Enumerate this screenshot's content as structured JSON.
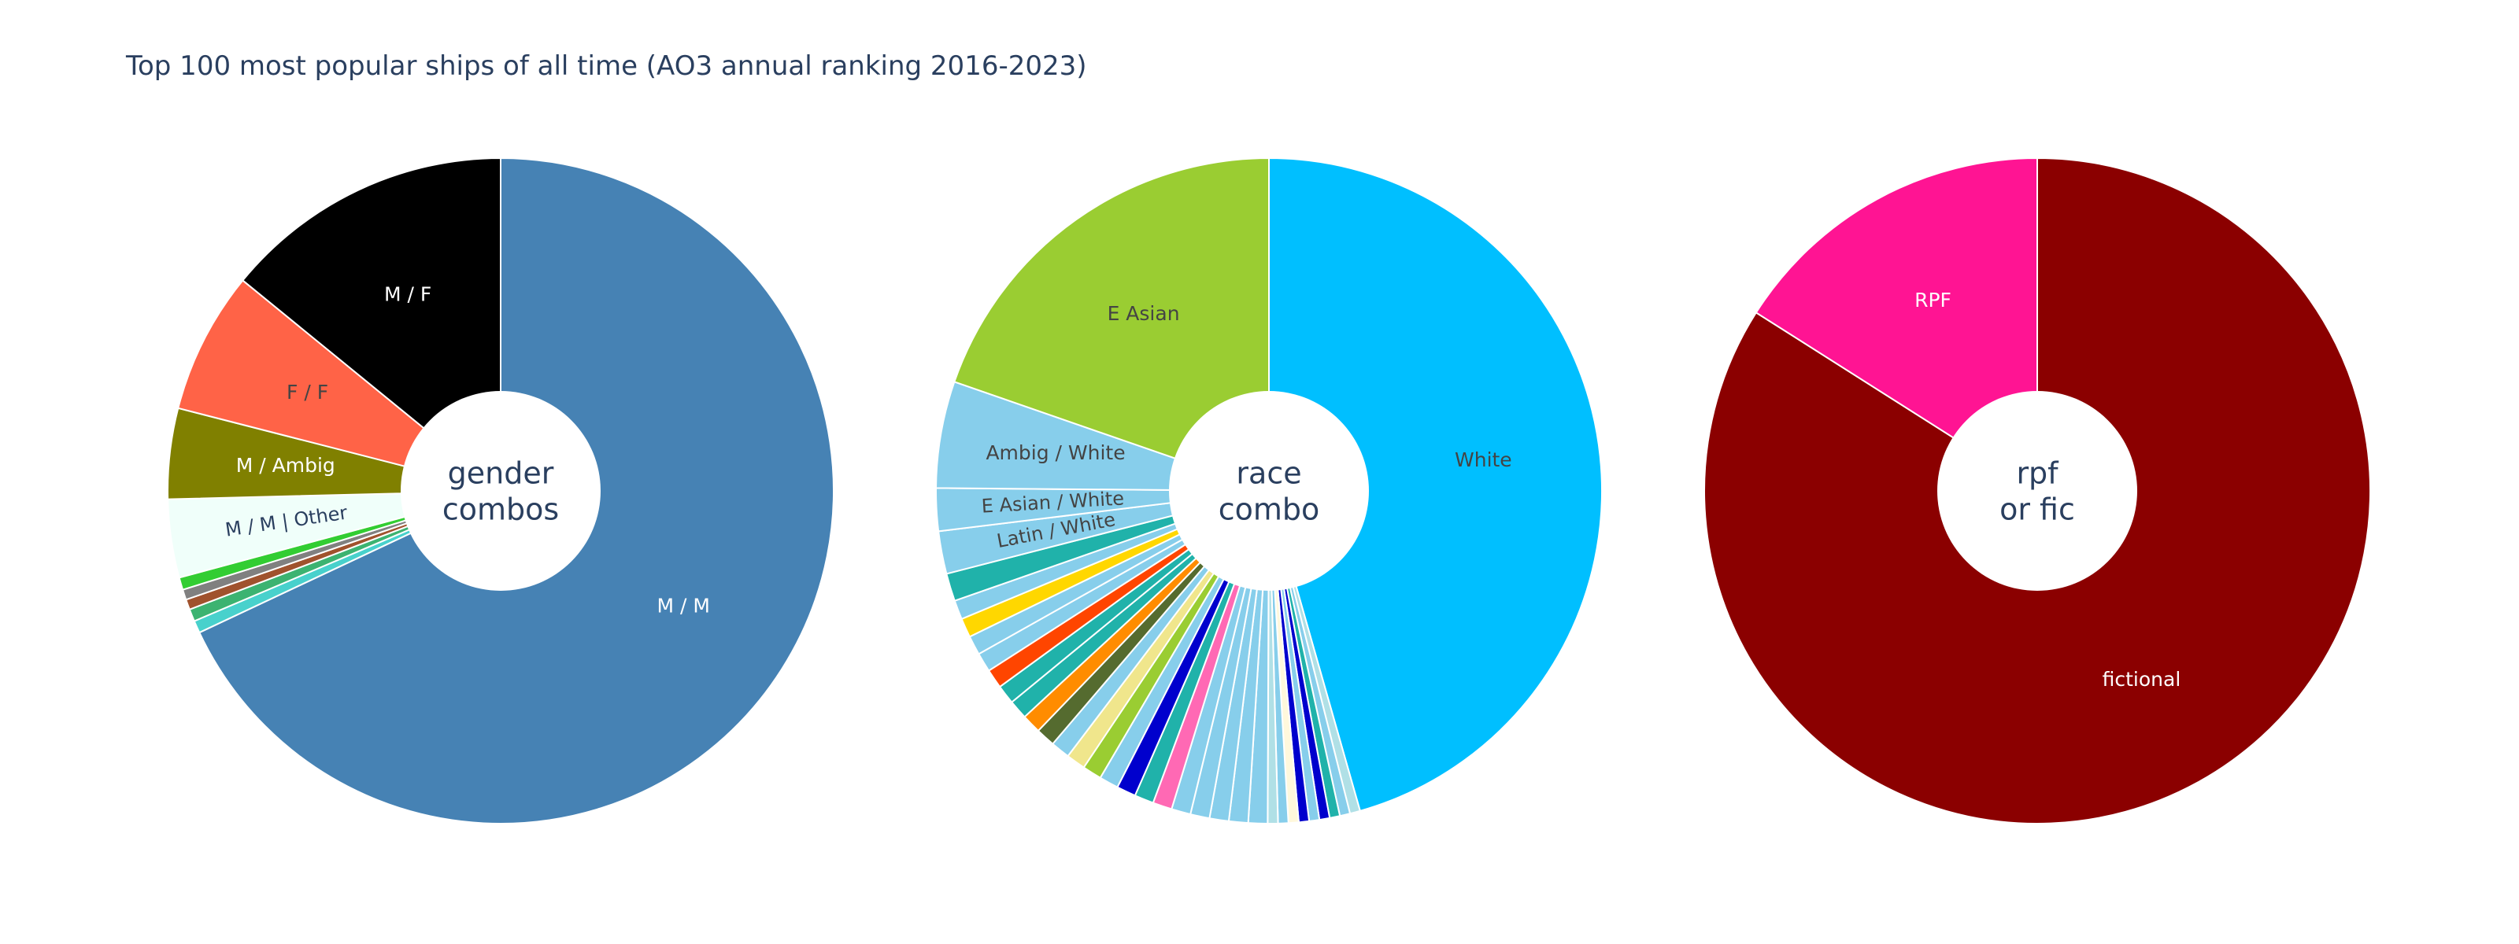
{
  "title": "Top 100 most popular ships of all time (AO3 annual ranking 2016-2023)",
  "chart_data": [
    {
      "type": "pie",
      "hole": true,
      "center_text": [
        "gender",
        "combos"
      ],
      "slices": [
        {
          "label": "M / M",
          "value": 68,
          "color": "#4682b4",
          "text_color": "#ffffff",
          "show_label": true
        },
        {
          "label": "",
          "value": 0.6,
          "color": "#48d1cc",
          "show_label": false
        },
        {
          "label": "",
          "value": 0.6,
          "color": "#3cb371",
          "show_label": false
        },
        {
          "label": "",
          "value": 0.5,
          "color": "#a0522d",
          "show_label": false
        },
        {
          "label": "",
          "value": 0.5,
          "color": "#808080",
          "show_label": false
        },
        {
          "label": "",
          "value": 0.6,
          "color": "#32cd32",
          "show_label": false
        },
        {
          "label": "M / M | Other",
          "value": 3.8,
          "color": "#f0fffa",
          "text_color": "#2a3f5f",
          "show_label": true
        },
        {
          "label": "M / Ambig",
          "value": 4.4,
          "color": "#808000",
          "text_color": "#ffffff",
          "show_label": true
        },
        {
          "label": "F / F",
          "value": 6.9,
          "color": "#ff6347",
          "text_color": "#444444",
          "show_label": true
        },
        {
          "label": "M / F",
          "value": 14.1,
          "color": "#000000",
          "text_color": "#ffffff",
          "show_label": true
        }
      ]
    },
    {
      "type": "pie",
      "hole": true,
      "center_text": [
        "race",
        "combo"
      ],
      "slices": [
        {
          "label": "White",
          "value": 44.0,
          "color": "#00bfff",
          "text_color": "#444444",
          "show_label": true
        },
        {
          "label": "",
          "value": 0.48,
          "color": "#b0e0e6",
          "show_label": false
        },
        {
          "label": "",
          "value": 0.48,
          "color": "#87ceeb",
          "show_label": false
        },
        {
          "label": "",
          "value": 0.48,
          "color": "#20b2aa",
          "show_label": false
        },
        {
          "label": "",
          "value": 0.48,
          "color": "#0000cd",
          "show_label": false
        },
        {
          "label": "",
          "value": 0.48,
          "color": "#87ceeb",
          "show_label": false
        },
        {
          "label": "",
          "value": 0.48,
          "color": "#0000cd",
          "show_label": false
        },
        {
          "label": "",
          "value": 0.48,
          "color": "#fff8dc",
          "show_label": false
        },
        {
          "label": "",
          "value": 0.48,
          "color": "#87ceeb",
          "show_label": false
        },
        {
          "label": "",
          "value": 0.48,
          "color": "#b0e0e6",
          "show_label": false
        },
        {
          "label": "",
          "value": 0.9,
          "color": "#87ceeb",
          "show_label": false
        },
        {
          "label": "",
          "value": 0.9,
          "color": "#87ceeb",
          "show_label": false
        },
        {
          "label": "",
          "value": 0.9,
          "color": "#87ceeb",
          "show_label": false
        },
        {
          "label": "",
          "value": 0.9,
          "color": "#87ceeb",
          "show_label": false
        },
        {
          "label": "",
          "value": 0.9,
          "color": "#87ceeb",
          "show_label": false
        },
        {
          "label": "",
          "value": 0.9,
          "color": "#ff69b4",
          "show_label": false
        },
        {
          "label": "",
          "value": 0.9,
          "color": "#20b2aa",
          "show_label": false
        },
        {
          "label": "",
          "value": 0.9,
          "color": "#0000cd",
          "show_label": false
        },
        {
          "label": "",
          "value": 0.9,
          "color": "#87ceeb",
          "show_label": false
        },
        {
          "label": "",
          "value": 0.9,
          "color": "#9acd32",
          "show_label": false
        },
        {
          "label": "",
          "value": 0.9,
          "color": "#f0e68c",
          "show_label": false
        },
        {
          "label": "",
          "value": 0.9,
          "color": "#87ceeb",
          "show_label": false
        },
        {
          "label": "",
          "value": 0.9,
          "color": "#556b2f",
          "show_label": false
        },
        {
          "label": "",
          "value": 0.9,
          "color": "#ff8c00",
          "show_label": false
        },
        {
          "label": "",
          "value": 0.9,
          "color": "#20b2aa",
          "show_label": false
        },
        {
          "label": "",
          "value": 0.9,
          "color": "#20b2aa",
          "show_label": false
        },
        {
          "label": "",
          "value": 0.9,
          "color": "#ff4500",
          "show_label": false
        },
        {
          "label": "",
          "value": 0.9,
          "color": "#87ceeb",
          "show_label": false
        },
        {
          "label": "",
          "value": 0.9,
          "color": "#87ceeb",
          "show_label": false
        },
        {
          "label": "",
          "value": 0.9,
          "color": "#ffd700",
          "show_label": false
        },
        {
          "label": "",
          "value": 0.9,
          "color": "#87ceeb",
          "show_label": false
        },
        {
          "label": "",
          "value": 1.3,
          "color": "#20b2aa",
          "show_label": false
        },
        {
          "label": "Latin / White",
          "value": 2.0,
          "color": "#87ceeb",
          "text_color": "#444444",
          "show_label": true
        },
        {
          "label": "E Asian / White",
          "value": 2.0,
          "color": "#87ceeb",
          "text_color": "#444444",
          "show_label": true
        },
        {
          "label": "Ambig / White",
          "value": 5.0,
          "color": "#87ceeb",
          "text_color": "#444444",
          "show_label": true
        },
        {
          "label": "E Asian",
          "value": 19.0,
          "color": "#9acd32",
          "text_color": "#444444",
          "show_label": true
        }
      ]
    },
    {
      "type": "pie",
      "hole": true,
      "center_text": [
        "rpf",
        "or fic"
      ],
      "slices": [
        {
          "label": "fictional",
          "value": 84,
          "color": "#8b0000",
          "text_color": "#ffffff",
          "show_label": true
        },
        {
          "label": "RPF",
          "value": 16,
          "color": "#ff1493",
          "text_color": "#ffffff",
          "show_label": true
        }
      ]
    }
  ]
}
